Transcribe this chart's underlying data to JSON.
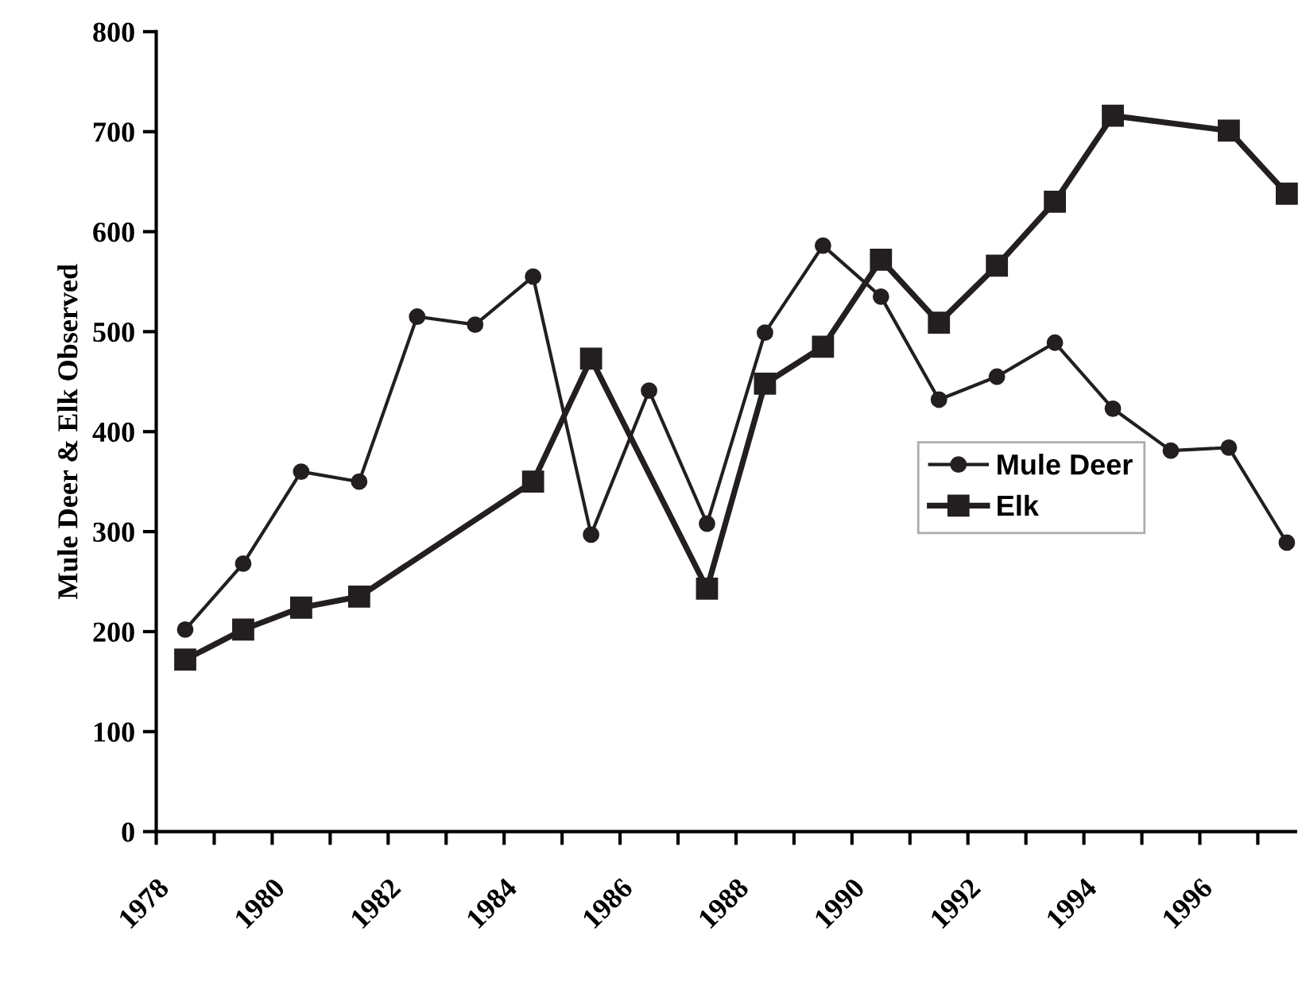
{
  "chart_data": {
    "type": "line",
    "ylabel": "Mule Deer & Elk Observed",
    "xlim": [
      1978,
      1997.65
    ],
    "ylim": [
      0,
      800
    ],
    "xticks": [
      1978,
      {
        "value": 1979,
        "label": null
      },
      1980,
      {
        "value": 1981,
        "label": null
      },
      1982,
      {
        "value": 1983,
        "label": null
      },
      1984,
      {
        "value": 1985,
        "label": null
      },
      1986,
      {
        "value": 1987,
        "label": null
      },
      1988,
      {
        "value": 1989,
        "label": null
      },
      1990,
      {
        "value": 1991,
        "label": null
      },
      1992,
      {
        "value": 1993,
        "label": null
      },
      1994,
      {
        "value": 1995,
        "label": null
      },
      1996,
      {
        "value": 1997,
        "label": null
      }
    ],
    "yticks": [
      0,
      100,
      200,
      300,
      400,
      500,
      600,
      700,
      800
    ],
    "grid": false,
    "legend": "right",
    "line_style": "solid",
    "series": [
      {
        "name": "Mule Deer",
        "color": "#231f20",
        "marker": "circle",
        "x": [
          1978.5,
          1979.5,
          1980.5,
          1981.5,
          1982.5,
          1983.5,
          1984.5,
          1985.5,
          1986.5,
          1987.5,
          1988.5,
          1989.5,
          1990.5,
          1991.5,
          1992.5,
          1993.5,
          1994.5,
          1995.5,
          1996.5,
          1997.5
        ],
        "values": [
          202,
          268,
          360,
          350,
          515,
          507,
          555,
          297,
          441,
          308,
          499,
          586,
          535,
          432,
          455,
          489,
          423,
          381,
          384,
          289
        ]
      },
      {
        "name": "Elk",
        "color": "#231f20",
        "marker": "square",
        "x": [
          1978.5,
          1979.5,
          1980.5,
          1981.5,
          1984.5,
          1985.5,
          1987.5,
          1988.5,
          1989.5,
          1990.5,
          1991.5,
          1992.5,
          1993.5,
          1994.5,
          1996.5,
          1997.5
        ],
        "values": [
          172,
          202,
          224,
          235,
          350,
          473,
          243,
          448,
          485,
          572,
          509,
          566,
          630,
          716,
          701,
          638
        ]
      }
    ]
  }
}
